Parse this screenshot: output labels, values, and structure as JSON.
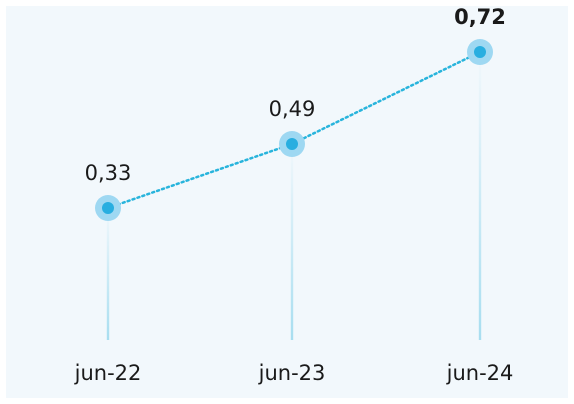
{
  "chart_data": {
    "type": "line",
    "categories": [
      "jun-22",
      "jun-23",
      "jun-24"
    ],
    "values": [
      0.33,
      0.49,
      0.72
    ],
    "data_labels": [
      "0,33",
      "0,49",
      "0,72"
    ],
    "highlight_last": true,
    "ylim": [
      0,
      0.8
    ],
    "grid": false,
    "title": "",
    "xlabel": "",
    "ylabel": "",
    "colors": {
      "line": "#28b4dc",
      "point": "#28aee0",
      "point_halo": "#9ed8f2",
      "drop_line": "#a8def0",
      "background": "#f2f8fc",
      "text": "#1a1a1a"
    }
  }
}
